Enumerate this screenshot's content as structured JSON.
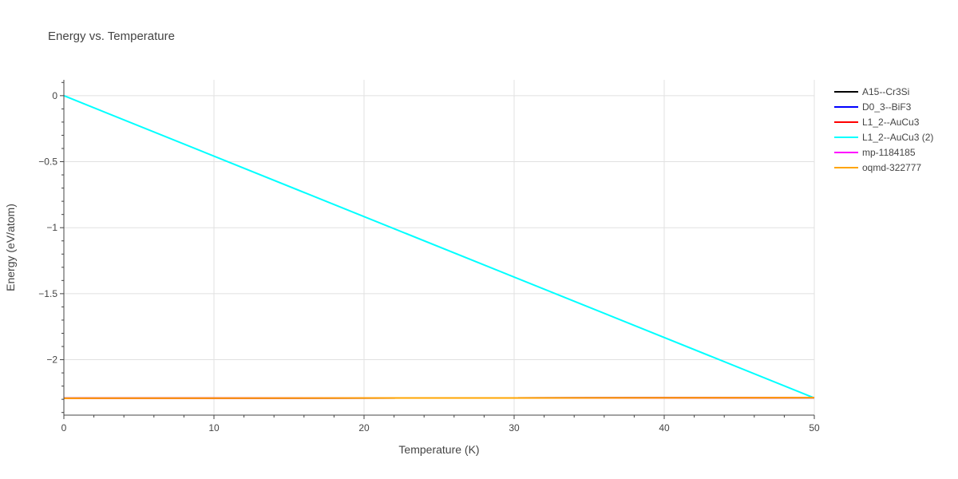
{
  "chart_data": {
    "type": "line",
    "title": "Energy vs. Temperature",
    "xlabel": "Temperature (K)",
    "ylabel": "Energy (eV/atom)",
    "xlim": [
      0,
      50
    ],
    "ylim": [
      -2.42,
      0.12
    ],
    "x_ticks": [
      0,
      10,
      20,
      30,
      40,
      50
    ],
    "y_ticks": [
      0,
      -0.5,
      -1,
      -1.5,
      -2
    ],
    "x_tick_labels": [
      "0",
      "10",
      "20",
      "30",
      "40",
      "50"
    ],
    "y_tick_labels": [
      "0",
      "−0.5",
      "−1",
      "−1.5",
      "−2"
    ],
    "grid": true,
    "legend_position": "top-right",
    "series": [
      {
        "name": "A15--Cr3Si",
        "color": "#000000",
        "x": [
          0,
          50
        ],
        "y": [
          -2.292,
          -2.288
        ]
      },
      {
        "name": "D0_3--BiF3",
        "color": "#0000ff",
        "x": [
          0,
          50
        ],
        "y": [
          -2.292,
          -2.288
        ]
      },
      {
        "name": "L1_2--AuCu3",
        "color": "#ff0000",
        "x": [
          0,
          50
        ],
        "y": [
          -2.292,
          -2.288
        ]
      },
      {
        "name": "L1_2--AuCu3 (2)",
        "color": "#00ffff",
        "x": [
          0,
          50
        ],
        "y": [
          0,
          -2.29
        ]
      },
      {
        "name": "mp-1184185",
        "color": "#ff00ff",
        "x": [
          0,
          50
        ],
        "y": [
          -2.292,
          -2.288
        ]
      },
      {
        "name": "oqmd-322777",
        "color": "#ffa500",
        "x": [
          0,
          50
        ],
        "y": [
          -2.292,
          -2.288
        ]
      }
    ]
  }
}
